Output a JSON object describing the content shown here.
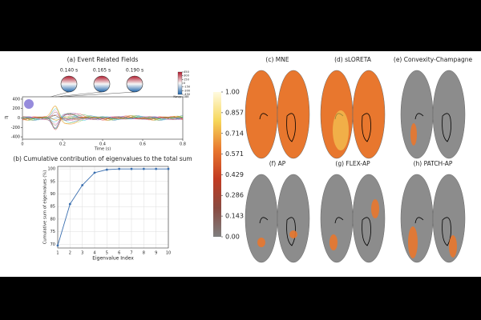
{
  "chart_data": [
    {
      "type": "erf",
      "title": "(a) Event Related Fields",
      "xlabel": "Time (s)",
      "ylabel": "fT",
      "annotations": [
        "0.140 s",
        "0.165 s",
        "0.190 s"
      ],
      "xlim": [
        0,
        0.8
      ],
      "xticks": [
        0,
        0.2,
        0.4,
        0.6,
        0.8
      ],
      "ylim": [
        -450,
        450
      ],
      "yticks": [
        -400,
        -200,
        0,
        200,
        400
      ],
      "colorbar": {
        "ticks": [
          450,
          300,
          150,
          0,
          -150,
          -300,
          -450
        ],
        "label": "Navg=188"
      }
    },
    {
      "type": "line",
      "title": "(b) Cumulative contribution of eigenvalues to the total sum",
      "xlabel": "Eigenvalue Index",
      "ylabel": "Cumulative sum of eigenvalues (%)",
      "x": [
        1,
        2,
        3,
        4,
        5,
        6,
        7,
        8,
        9,
        10
      ],
      "values": [
        69.5,
        86,
        93.5,
        98.5,
        99.7,
        100,
        100,
        100,
        100,
        100
      ],
      "color": "#3a6fb0",
      "xlim": [
        1,
        10
      ],
      "xticks": [
        1,
        2,
        3,
        4,
        5,
        6,
        7,
        8,
        9,
        10
      ],
      "ylim": [
        68.5,
        101
      ],
      "yticks": [
        70,
        75,
        80,
        85,
        90,
        95,
        100
      ],
      "grid": true
    },
    {
      "type": "colorbar",
      "ticks": [
        {
          "value": 1,
          "label": "1.00"
        },
        0.857,
        0.714,
        0.571,
        0.429,
        0.286,
        0.143,
        {
          "value": 0,
          "label": "0.00"
        }
      ],
      "lim": [
        0,
        1
      ],
      "colors": [
        "#7f7f7f",
        "#8a4a40",
        "#c23b22",
        "#e8772e",
        "#f6d65a",
        "#fffbe0"
      ]
    }
  ],
  "panels": [
    "(c) MNE",
    "(d) sLORETA",
    "(e) Convexity-Champagne",
    "(f) AP",
    "(g) FLEX-AP",
    "(h) PATCH-AP"
  ]
}
